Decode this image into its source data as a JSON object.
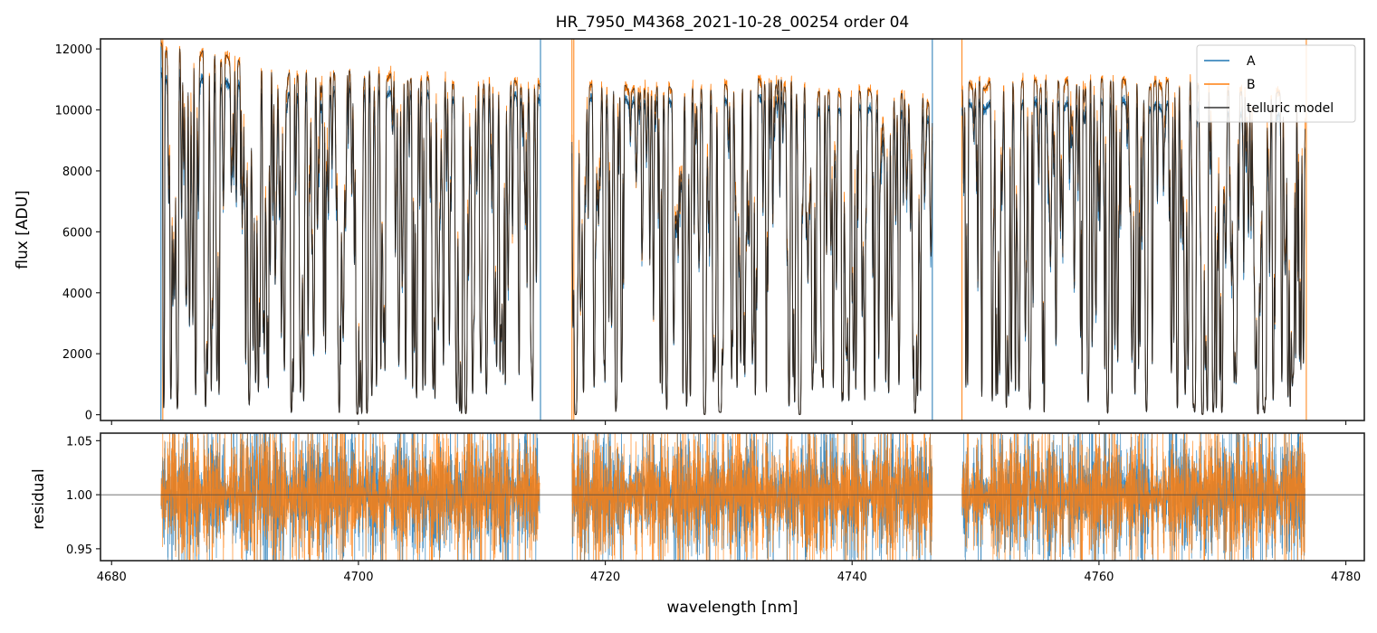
{
  "chart_data": [
    {
      "type": "line",
      "title": "HR_7950_M4368_2021-10-28_00254  order 04",
      "xlabel": "",
      "ylabel": "flux [ADU]",
      "xlim": [
        4679.1,
        4781.5
      ],
      "ylim": [
        -190,
        12330
      ],
      "xticks": [
        4680,
        4700,
        4720,
        4740,
        4760,
        4780
      ],
      "yticks": [
        0,
        2000,
        4000,
        6000,
        8000,
        10000,
        12000
      ],
      "ytick_labels": [
        "0",
        "2000",
        "4000",
        "6000",
        "8000",
        "10000",
        "12000"
      ],
      "grid": false,
      "legend_position": "top-right",
      "series": [
        {
          "name": "A",
          "color": "#1f77b4"
        },
        {
          "name": "B",
          "color": "#ff7f0e"
        },
        {
          "name": "telluric model",
          "color": "#333333"
        }
      ],
      "segments_nm": [
        [
          4684.0,
          4714.7
        ],
        [
          4717.3,
          4746.5
        ],
        [
          4748.9,
          4776.7
        ]
      ],
      "continuum_B": {
        "x": [
          4684.0,
          4689.0,
          4692.0,
          4700,
          4710,
          4720,
          4728,
          4733,
          4740,
          4746.5,
          4749,
          4760,
          4770,
          4776.7
        ],
        "y": [
          12100,
          11700,
          11300,
          11200,
          10900,
          10700,
          10600,
          10950,
          10600,
          10300,
          10800,
          10900,
          10800,
          10300
        ]
      },
      "continuum_A_ratio": {
        "x": [
          4684.0,
          4690,
          4700,
          4720,
          4760,
          4776.7
        ],
        "y": [
          0.92,
          0.93,
          0.95,
          0.96,
          0.93,
          0.93
        ]
      },
      "strong_lines": [
        {
          "center": 4691.15,
          "depth_min_flux": 350
        },
        {
          "center": 4695.55,
          "depth_min_flux": 2200
        },
        {
          "center": 4699.9,
          "depth_min_flux": 100
        },
        {
          "center": 4706.05,
          "depth_min_flux": 900
        },
        {
          "center": 4708.7,
          "depth_min_flux": 50
        },
        {
          "center": 4714.0,
          "depth_min_flux": 2000
        },
        {
          "center": 4717.6,
          "depth_min_flux": 0
        },
        {
          "center": 4728.05,
          "depth_min_flux": 0
        },
        {
          "center": 4729.3,
          "depth_min_flux": 300
        },
        {
          "center": 4735.75,
          "depth_min_flux": 0
        },
        {
          "center": 4745.1,
          "depth_min_flux": 50
        },
        {
          "center": 4754.4,
          "depth_min_flux": 200
        },
        {
          "center": 4760.7,
          "depth_min_flux": 200
        },
        {
          "center": 4763.85,
          "depth_min_flux": 300
        },
        {
          "center": 4767.75,
          "depth_min_flux": 100
        },
        {
          "center": 4773.4,
          "depth_min_flux": 300
        }
      ]
    },
    {
      "type": "line",
      "title": "",
      "xlabel": "wavelength [nm]",
      "ylabel": "residual",
      "xlim": [
        4679.1,
        4781.5
      ],
      "ylim": [
        0.939,
        1.057
      ],
      "xticks": [
        4680,
        4700,
        4720,
        4740,
        4760,
        4780
      ],
      "xtick_labels": [
        "4680",
        "4700",
        "4720",
        "4740",
        "4760",
        "4780"
      ],
      "yticks": [
        0.95,
        1.0,
        1.05
      ],
      "ytick_labels": [
        "0.95",
        "1.00",
        "1.05"
      ],
      "reference_line": 1.0,
      "series": [
        {
          "name": "A",
          "color": "#1f77b4",
          "noise_sigma_continuum": 0.008
        },
        {
          "name": "B",
          "color": "#ff7f0e",
          "noise_sigma_continuum": 0.008
        }
      ]
    }
  ]
}
